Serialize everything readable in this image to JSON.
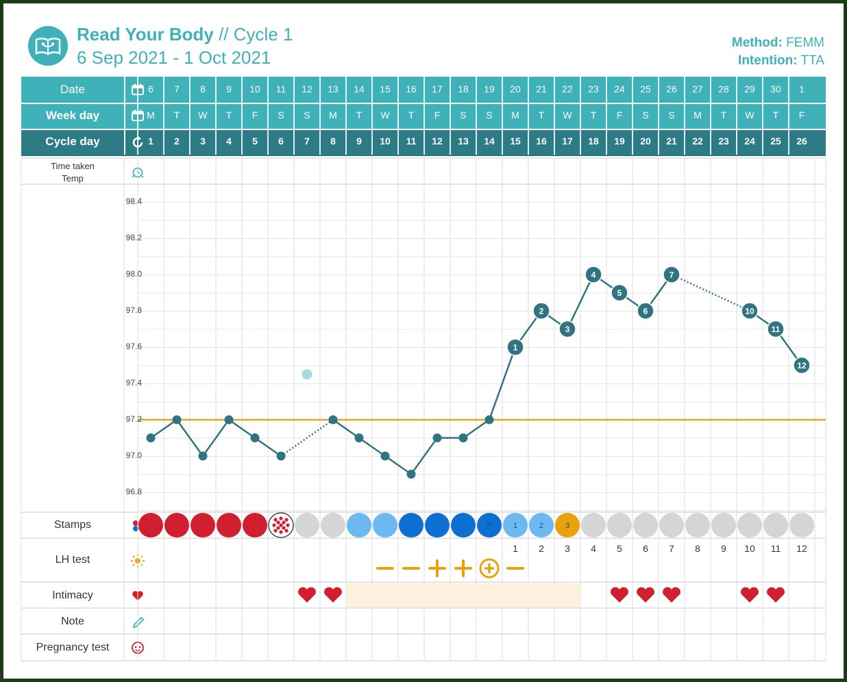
{
  "header": {
    "app_name": "Read Your Body",
    "separator": " // ",
    "cycle": "Cycle 1",
    "date_range": "6 Sep 2021 - 1 Oct 2021",
    "method_label": "Method:",
    "method_value": "FEMM",
    "intention_label": "Intention:",
    "intention_value": "TTA"
  },
  "rows": {
    "date": "Date",
    "weekday": "Week day",
    "cycleday": "Cycle day",
    "time_taken": "Time taken",
    "temp": "Temp",
    "stamps": "Stamps",
    "lh": "LH test",
    "intimacy": "Intimacy",
    "note": "Note",
    "pregnancy": "Pregnancy test"
  },
  "dates": [
    "6",
    "7",
    "8",
    "9",
    "10",
    "11",
    "12",
    "13",
    "14",
    "15",
    "16",
    "17",
    "18",
    "19",
    "20",
    "21",
    "22",
    "23",
    "24",
    "25",
    "26",
    "27",
    "28",
    "29",
    "30",
    "1"
  ],
  "weekdays": [
    "M",
    "T",
    "W",
    "T",
    "F",
    "S",
    "S",
    "M",
    "T",
    "W",
    "T",
    "F",
    "S",
    "S",
    "M",
    "T",
    "W",
    "T",
    "F",
    "S",
    "S",
    "M",
    "T",
    "W",
    "T",
    "F"
  ],
  "cycle_days": [
    "1",
    "2",
    "3",
    "4",
    "5",
    "6",
    "7",
    "8",
    "9",
    "10",
    "11",
    "12",
    "13",
    "14",
    "15",
    "16",
    "17",
    "18",
    "19",
    "20",
    "21",
    "22",
    "23",
    "24",
    "25",
    "26"
  ],
  "chart_data": {
    "type": "line",
    "title": "",
    "ylabel": "Temp",
    "ylim": [
      96.7,
      98.5
    ],
    "yticks": [
      "98.4",
      "98.2",
      "98.0",
      "97.8",
      "97.6",
      "97.4",
      "97.2",
      "97.0",
      "96.8"
    ],
    "x": [
      1,
      2,
      3,
      4,
      5,
      6,
      8,
      9,
      10,
      11,
      12,
      13,
      14,
      15,
      16,
      17,
      18,
      19,
      20,
      21,
      24,
      25,
      26
    ],
    "values": [
      97.1,
      97.2,
      97.0,
      97.2,
      97.1,
      97.0,
      97.2,
      97.1,
      97.0,
      96.9,
      97.1,
      97.1,
      97.2,
      97.6,
      97.8,
      97.7,
      98.0,
      97.9,
      97.8,
      98.0,
      97.8,
      97.7,
      97.5
    ],
    "point_labels": [
      "",
      "",
      "",
      "",
      "",
      "",
      "",
      "",
      "",
      "",
      "",
      "",
      "",
      "1",
      "2",
      "3",
      "4",
      "5",
      "6",
      "7",
      "10",
      "11",
      "12"
    ],
    "dotted_segments": [
      [
        6,
        8
      ],
      [
        21,
        24
      ]
    ],
    "excluded_point": {
      "x": 7,
      "value": 97.45
    },
    "coverline": 97.2,
    "colors": {
      "line": "#2f7480",
      "coverline": "#e3a32a",
      "excluded": "#a9d8e0"
    }
  },
  "stamps": [
    {
      "color": "#d0202f",
      "label": ""
    },
    {
      "color": "#d0202f",
      "label": ""
    },
    {
      "color": "#d0202f",
      "label": ""
    },
    {
      "color": "#d0202f",
      "label": ""
    },
    {
      "color": "#d0202f",
      "label": ""
    },
    {
      "color": "dotted",
      "label": ""
    },
    {
      "color": "#d4d5d7",
      "label": ""
    },
    {
      "color": "#d4d5d7",
      "label": ""
    },
    {
      "color": "#6cb8f1",
      "label": ""
    },
    {
      "color": "#6cb8f1",
      "label": ""
    },
    {
      "color": "#0d6fd1",
      "label": ""
    },
    {
      "color": "#0d6fd1",
      "label": ""
    },
    {
      "color": "#0d6fd1",
      "label": ""
    },
    {
      "color": "#0d6fd1",
      "label": "P"
    },
    {
      "color": "#6cb8f1",
      "label": "1"
    },
    {
      "color": "#6cb8f1",
      "label": "2"
    },
    {
      "color": "#e9a20c",
      "label": "3"
    },
    {
      "color": "#d4d5d7",
      "label": ""
    },
    {
      "color": "#d4d5d7",
      "label": ""
    },
    {
      "color": "#d4d5d7",
      "label": ""
    },
    {
      "color": "#d4d5d7",
      "label": ""
    },
    {
      "color": "#d4d5d7",
      "label": ""
    },
    {
      "color": "#d4d5d7",
      "label": ""
    },
    {
      "color": "#d4d5d7",
      "label": ""
    },
    {
      "color": "#d4d5d7",
      "label": ""
    },
    {
      "color": "#d4d5d7",
      "label": ""
    }
  ],
  "count_labels": [
    {
      "day": 15,
      "label": "1"
    },
    {
      "day": 16,
      "label": "2"
    },
    {
      "day": 17,
      "label": "3"
    },
    {
      "day": 18,
      "label": "4"
    },
    {
      "day": 19,
      "label": "5"
    },
    {
      "day": 20,
      "label": "6"
    },
    {
      "day": 21,
      "label": "7"
    },
    {
      "day": 22,
      "label": "8"
    },
    {
      "day": 23,
      "label": "9"
    },
    {
      "day": 24,
      "label": "10"
    },
    {
      "day": 25,
      "label": "11"
    },
    {
      "day": 26,
      "label": "12"
    }
  ],
  "lh_tests": [
    {
      "day": 10,
      "result": "negative"
    },
    {
      "day": 11,
      "result": "negative"
    },
    {
      "day": 12,
      "result": "positive"
    },
    {
      "day": 13,
      "result": "positive"
    },
    {
      "day": 14,
      "result": "peak"
    },
    {
      "day": 15,
      "result": "negative"
    }
  ],
  "intimacy_days": [
    7,
    8,
    19,
    20,
    21,
    24,
    25
  ],
  "fertile_window": [
    9,
    17
  ],
  "colors": {
    "teal": "#3fb1b8",
    "teal_dark": "#2d7c85",
    "grid": "#dedede",
    "heart": "#d0202f",
    "lh": "#e9a20c",
    "fertile": "#fdf0dd"
  }
}
